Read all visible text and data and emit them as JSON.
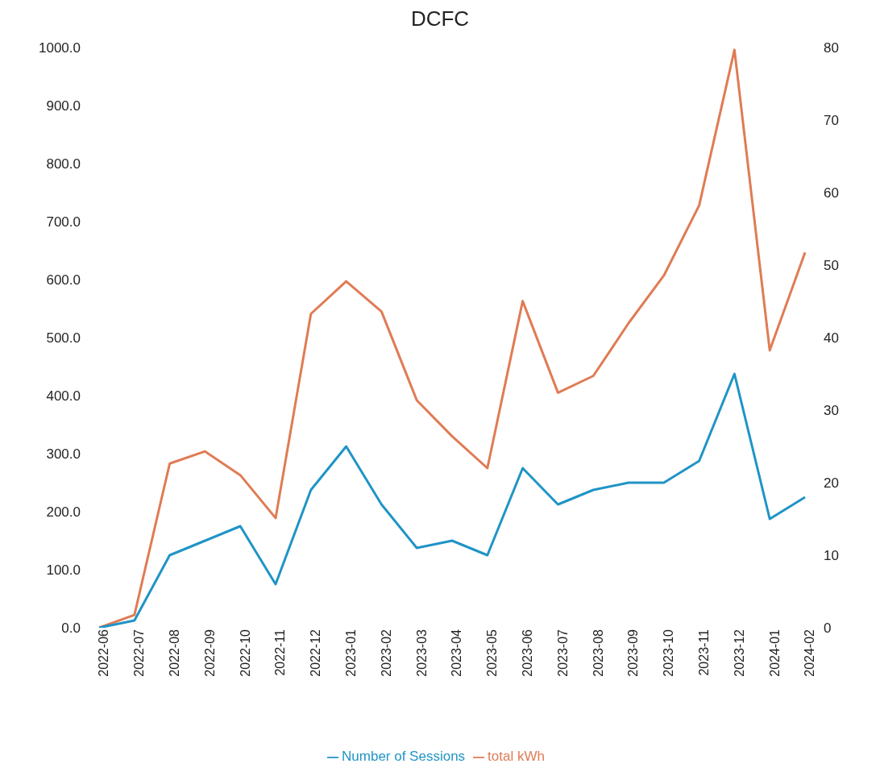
{
  "chart_data": {
    "type": "line",
    "title": "DCFC",
    "categories": [
      "2022-06",
      "2022-07",
      "2022-08",
      "2022-09",
      "2022-10",
      "2022-11",
      "2022-12",
      "2023-01",
      "2023-02",
      "2023-03",
      "2023-04",
      "2023-05",
      "2023-06",
      "2023-07",
      "2023-08",
      "2023-09",
      "2023-10",
      "2023-11",
      "2023-12",
      "2024-01",
      "2024-02"
    ],
    "series": [
      {
        "name": "total kWh",
        "color": "#e07b54",
        "values": [
          0,
          22,
          283,
          304,
          263,
          189,
          541,
          597,
          545,
          392,
          330,
          275,
          563,
          405,
          434,
          525,
          607,
          728,
          996,
          478,
          647
        ]
      },
      {
        "name": "Number of Sessions",
        "color": "#1f94c6",
        "axis": "y2",
        "values": [
          0,
          1,
          10,
          12,
          14,
          6,
          19,
          25,
          17,
          11,
          12,
          10,
          22,
          17,
          19,
          20,
          20,
          23,
          35,
          15,
          18
        ]
      }
    ],
    "ylim": [
      0,
      1000
    ],
    "yticks": [
      {
        "value": 0,
        "label": "0.0"
      },
      {
        "value": 100,
        "label": "100.0"
      },
      {
        "value": 200,
        "label": "200.0"
      },
      {
        "value": 300,
        "label": "300.0"
      },
      {
        "value": 400,
        "label": "400.0"
      },
      {
        "value": 500,
        "label": "500.0"
      },
      {
        "value": 600,
        "label": "600.0"
      },
      {
        "value": 700,
        "label": "700.0"
      },
      {
        "value": 800,
        "label": "800.0"
      },
      {
        "value": 900,
        "label": "900.0"
      },
      {
        "value": 1000,
        "label": "1000.0"
      }
    ],
    "y2lim": [
      0,
      80
    ],
    "y2ticks": [
      0,
      10,
      20,
      30,
      40,
      50,
      60,
      70,
      80
    ],
    "grid": false,
    "legend": "bottom",
    "marker": "none",
    "line_style": "solid"
  }
}
